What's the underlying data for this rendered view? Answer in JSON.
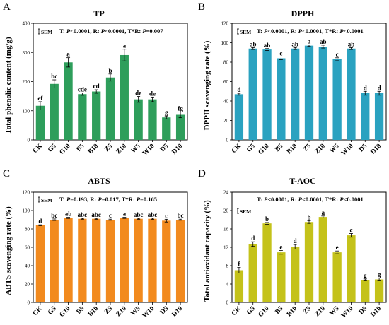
{
  "chart_data": [
    {
      "type": "bar",
      "panel": "A",
      "title": "TP",
      "ylabel": "Total phenolic content (mg/g)",
      "stats": {
        "t": "T: P<0.0001",
        "r": "R: P<0.0001",
        "tr": "T*R: P=0.007"
      },
      "sem_label": "SEM",
      "ylim": [
        0,
        400
      ],
      "yticks": [
        0,
        100,
        200,
        300,
        400
      ],
      "color": "#2e9e5b",
      "categories": [
        "CK",
        "G5",
        "G10",
        "B5",
        "B10",
        "Z5",
        "Z10",
        "W5",
        "W10",
        "D5",
        "D10"
      ],
      "values": [
        117,
        192,
        266,
        157,
        166,
        214,
        291,
        139,
        139,
        77,
        86
      ],
      "errors": [
        14,
        14,
        16,
        4,
        6,
        12,
        20,
        10,
        8,
        5,
        10
      ],
      "letters": [
        "ef",
        "bc",
        "a",
        "cde",
        "cd",
        "b",
        "a",
        "de",
        "de",
        "g",
        "fg"
      ]
    },
    {
      "type": "bar",
      "panel": "B",
      "title": "DPPH",
      "ylabel": "DPPH scavenging rate (%)",
      "stats": {
        "t": "T: P<0.0001",
        "r": "R: P<0.0001",
        "tr": "T*R: P<0.0001"
      },
      "sem_label": "SEM",
      "ylim": [
        0,
        120
      ],
      "yticks": [
        0,
        20,
        40,
        60,
        80,
        100,
        120
      ],
      "color": "#2aa2c0",
      "categories": [
        "CK",
        "G5",
        "G10",
        "B5",
        "B10",
        "Z5",
        "Z10",
        "W5",
        "W10",
        "D5",
        "D10"
      ],
      "values": [
        47,
        94,
        93,
        84,
        94,
        97,
        96,
        83,
        94,
        48,
        48
      ],
      "errors": [
        1,
        1,
        1,
        1.5,
        1,
        0.8,
        1.5,
        1.5,
        1,
        2,
        2
      ],
      "letters": [
        "d",
        "ab",
        "ab",
        "c",
        "ab",
        "a",
        "ab",
        "c",
        "ab",
        "d",
        "d"
      ]
    },
    {
      "type": "bar",
      "panel": "C",
      "title": "ABTS",
      "ylabel": "ABTS scavenging rate (%)",
      "stats": {
        "t": "T: P=0.193",
        "r": "R: P=0.017",
        "tr": "T*R: P=0.165"
      },
      "sem_label": "SEM",
      "ylim": [
        0,
        120
      ],
      "yticks": [
        0,
        20,
        40,
        60,
        80,
        100,
        120
      ],
      "color": "#f28a1e",
      "categories": [
        "CK",
        "G5",
        "G10",
        "B5",
        "B10",
        "Z5",
        "Z10",
        "W5",
        "W10",
        "D5",
        "D10"
      ],
      "values": [
        84,
        90,
        92,
        91,
        91,
        90,
        92,
        91,
        91,
        89,
        90
      ],
      "errors": [
        0.5,
        0.8,
        0.6,
        0.5,
        0.5,
        0.6,
        0.6,
        0.5,
        0.6,
        1.5,
        0.6
      ],
      "letters": [
        "d",
        "bc",
        "ab",
        "abc",
        "abc",
        "c",
        "a",
        "abc",
        "abc",
        "c",
        "bc"
      ]
    },
    {
      "type": "bar",
      "panel": "D",
      "title": "T-AOC",
      "ylabel": "Total antioxidant capacity (%)",
      "stats": {
        "t": "T: P<0.0001",
        "r": "R: P<0.0001",
        "tr": "T*R: P<0.0001"
      },
      "sem_label": "SEM",
      "ylim": [
        0,
        24
      ],
      "yticks": [
        0,
        4,
        8,
        12,
        16,
        20,
        24
      ],
      "color": "#c4c21a",
      "categories": [
        "CK",
        "G5",
        "G10",
        "B5",
        "B10",
        "Z5",
        "Z10",
        "W5",
        "W10",
        "D5",
        "D10"
      ],
      "values": [
        7.0,
        12.7,
        17.2,
        10.9,
        12.1,
        17.5,
        18.6,
        10.9,
        14.6,
        4.9,
        5.0
      ],
      "errors": [
        0.6,
        0.5,
        0.2,
        0.4,
        0.5,
        0.3,
        0.2,
        0.3,
        0.4,
        0.2,
        0.3
      ],
      "letters": [
        "f",
        "d",
        "b",
        "e",
        "d",
        "b",
        "a",
        "e",
        "c",
        "g",
        "g"
      ]
    }
  ]
}
